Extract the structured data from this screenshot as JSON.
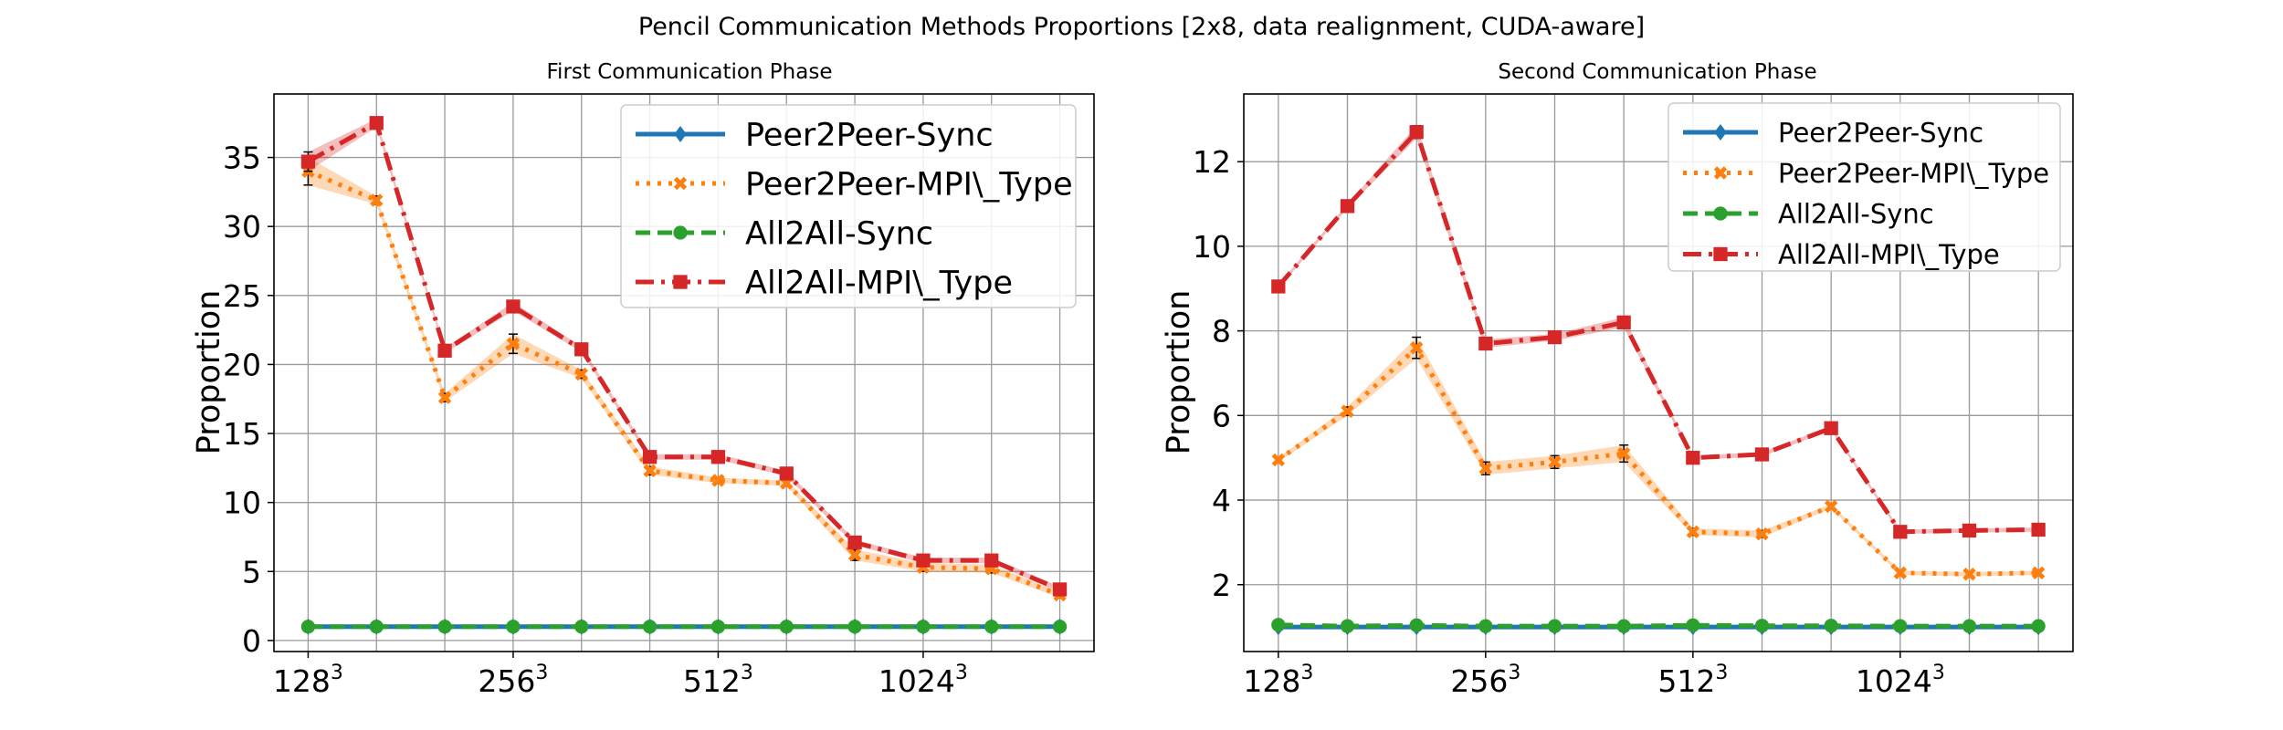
{
  "suptitle": "Pencil Communication Methods Proportions [2x8, data realignment, CUDA-aware]",
  "colors": {
    "Peer2Peer-Sync": "#1f77b4",
    "Peer2Peer-MPI\\_Type": "#ff7f0e",
    "All2All-Sync": "#2ca02c",
    "All2All-MPI\\_Type": "#d62728"
  },
  "chart_data": [
    {
      "type": "line",
      "title": "First Communication Phase",
      "xlabel": "",
      "ylabel": "Proportion",
      "x": [
        0,
        1,
        2,
        3,
        4,
        5,
        6,
        7,
        8,
        9,
        10,
        11
      ],
      "xticks": [
        {
          "x": 0,
          "base": "128",
          "exp": "3"
        },
        {
          "x": 3,
          "base": "256",
          "exp": "3"
        },
        {
          "x": 6,
          "base": "512",
          "exp": "3"
        },
        {
          "x": 9,
          "base": "1024",
          "exp": "3"
        }
      ],
      "xlim": [
        -0.5,
        11.5
      ],
      "ylim": [
        -0.8,
        39.6
      ],
      "yticks": [
        0,
        5,
        10,
        15,
        20,
        25,
        30,
        35
      ],
      "grid": true,
      "legend": "top-right",
      "series": [
        {
          "name": "Peer2Peer-Sync",
          "marker": "diamond",
          "dash": "solid",
          "values": [
            1,
            1,
            1,
            1,
            1,
            1,
            1,
            1,
            1,
            1,
            1,
            1
          ]
        },
        {
          "name": "Peer2Peer-MPI\\_Type",
          "marker": "x",
          "dash": "dotted",
          "values": [
            34.0,
            31.9,
            17.6,
            21.5,
            19.3,
            12.3,
            11.6,
            11.4,
            6.2,
            5.3,
            5.2,
            3.3
          ],
          "band": [
            1.0,
            0.3,
            0.3,
            0.7,
            0.3,
            0.3,
            0.2,
            0.2,
            0.4,
            0.3,
            0.3,
            0.2
          ]
        },
        {
          "name": "All2All-Sync",
          "marker": "circle",
          "dash": "dashed",
          "values": [
            1,
            1,
            1,
            1,
            1,
            1,
            1,
            1,
            1,
            1,
            1,
            1
          ]
        },
        {
          "name": "All2All-MPI\\_Type",
          "marker": "square",
          "dash": "dashdot",
          "values": [
            34.7,
            37.5,
            21.0,
            24.2,
            21.1,
            13.3,
            13.3,
            12.1,
            7.1,
            5.8,
            5.8,
            3.7
          ],
          "band": [
            0.7,
            0.3,
            0.2,
            0.3,
            0.2,
            0.2,
            0.2,
            0.2,
            0.2,
            0.2,
            0.2,
            0.2
          ]
        }
      ]
    },
    {
      "type": "line",
      "title": "Second Communication Phase",
      "xlabel": "",
      "ylabel": "Proportion",
      "x": [
        0,
        1,
        2,
        3,
        4,
        5,
        6,
        7,
        8,
        9,
        10,
        11
      ],
      "xticks": [
        {
          "x": 0,
          "base": "128",
          "exp": "3"
        },
        {
          "x": 3,
          "base": "256",
          "exp": "3"
        },
        {
          "x": 6,
          "base": "512",
          "exp": "3"
        },
        {
          "x": 9,
          "base": "1024",
          "exp": "3"
        }
      ],
      "xlim": [
        -0.5,
        11.5
      ],
      "ylim": [
        0.42,
        13.6
      ],
      "yticks": [
        2,
        4,
        6,
        8,
        10,
        12
      ],
      "grid": true,
      "legend": "top-right",
      "series": [
        {
          "name": "Peer2Peer-Sync",
          "marker": "diamond",
          "dash": "solid",
          "values": [
            1.0,
            1.0,
            1.0,
            1.0,
            1.0,
            1.0,
            1.0,
            1.0,
            1.0,
            1.0,
            1.0,
            1.0
          ]
        },
        {
          "name": "Peer2Peer-MPI\\_Type",
          "marker": "x",
          "dash": "dotted",
          "values": [
            4.95,
            6.1,
            7.6,
            4.75,
            4.9,
            5.1,
            3.25,
            3.2,
            3.85,
            2.28,
            2.25,
            2.28
          ],
          "band": [
            0.05,
            0.1,
            0.25,
            0.15,
            0.15,
            0.2,
            0.08,
            0.08,
            0.05,
            0.05,
            0.05,
            0.05
          ]
        },
        {
          "name": "All2All-Sync",
          "marker": "circle",
          "dash": "dashed",
          "values": [
            1.05,
            1.02,
            1.04,
            1.02,
            1.02,
            1.02,
            1.04,
            1.03,
            1.03,
            1.02,
            1.02,
            1.02
          ]
        },
        {
          "name": "All2All-MPI\\_Type",
          "marker": "square",
          "dash": "dashdot",
          "values": [
            9.05,
            10.95,
            12.7,
            7.7,
            7.85,
            8.2,
            5.0,
            5.08,
            5.7,
            3.25,
            3.28,
            3.3
          ],
          "band": [
            0.05,
            0.05,
            0.15,
            0.1,
            0.08,
            0.12,
            0.05,
            0.05,
            0.05,
            0.05,
            0.05,
            0.05
          ]
        }
      ]
    }
  ]
}
